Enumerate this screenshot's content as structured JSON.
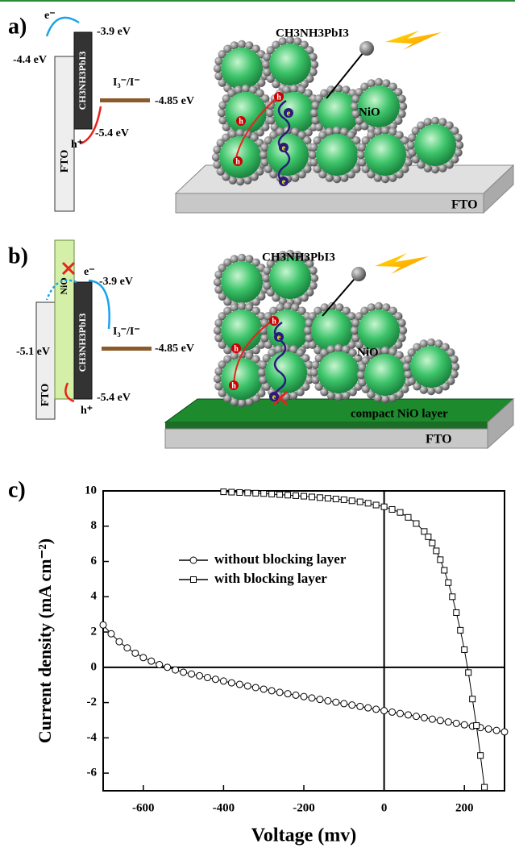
{
  "panel_a": {
    "label": "a)",
    "electron_sup": "e⁻",
    "cb": "-3.9 eV",
    "fto_level": "-4.4 eV",
    "perovskite": "CH3NH3PbI3",
    "redox": "I₃⁻/I⁻",
    "redox_level": "-4.85 eV",
    "hole_sup": "h⁺",
    "vb": "-5.4 eV",
    "fto": "FTO",
    "absorber": "CH3NH3PbI3",
    "nio": "NiO",
    "substrate": "FTO",
    "hole": "h",
    "electron": "e"
  },
  "panel_b": {
    "label": "b)",
    "electron_sup": "e⁻",
    "cb": "-3.9 eV",
    "nio_level": "-5.1 eV",
    "nio_band": "NiO",
    "perovskite": "CH3NH3PbI3",
    "redox": "I₃⁻/I⁻",
    "redox_level": "-4.85 eV",
    "hole_sup": "h⁺",
    "vb": "-5.4 eV",
    "fto": "FTO",
    "absorber": "CH3NH3PbI3",
    "nio": "NiO",
    "compact_layer": "compact NiO layer",
    "substrate": "FTO",
    "hole": "h",
    "electron": "e"
  },
  "chart_data": {
    "type": "scatter",
    "panel_label": "c)",
    "x_label": "Voltage (mv)",
    "y_label": "Current density (mA cm⁻²)",
    "xlim": [
      -700,
      300
    ],
    "xticks": [
      -600,
      -400,
      -200,
      0,
      200
    ],
    "ylim": [
      -7,
      10
    ],
    "yticks": [
      -6,
      -4,
      -2,
      0,
      2,
      4,
      6,
      8,
      10
    ],
    "zero_lines": true,
    "legend": "center left",
    "series": [
      {
        "name": "without blocking layer",
        "marker": "circle",
        "color": "#000000",
        "x": [
          -700,
          -680,
          -660,
          -640,
          -620,
          -600,
          -580,
          -560,
          -540,
          -520,
          -500,
          -480,
          -460,
          -440,
          -420,
          -400,
          -380,
          -360,
          -340,
          -320,
          -300,
          -280,
          -260,
          -240,
          -220,
          -200,
          -180,
          -160,
          -140,
          -120,
          -100,
          -80,
          -60,
          -40,
          -20,
          0,
          20,
          40,
          60,
          80,
          100,
          120,
          140,
          160,
          180,
          200,
          220,
          240,
          260,
          280,
          300
        ],
        "values": [
          2.4,
          1.9,
          1.45,
          1.1,
          0.8,
          0.55,
          0.35,
          0.15,
          0.0,
          -0.15,
          -0.28,
          -0.38,
          -0.48,
          -0.58,
          -0.68,
          -0.78,
          -0.88,
          -0.97,
          -1.06,
          -1.15,
          -1.24,
          -1.33,
          -1.42,
          -1.5,
          -1.58,
          -1.66,
          -1.74,
          -1.82,
          -1.9,
          -1.98,
          -2.06,
          -2.14,
          -2.22,
          -2.3,
          -2.38,
          -2.46,
          -2.54,
          -2.62,
          -2.7,
          -2.78,
          -2.86,
          -2.94,
          -3.02,
          -3.1,
          -3.18,
          -3.26,
          -3.34,
          -3.42,
          -3.5,
          -3.58,
          -3.66
        ]
      },
      {
        "name": "with blocking layer",
        "marker": "square",
        "color": "#000000",
        "x": [
          -400,
          -380,
          -360,
          -340,
          -320,
          -300,
          -280,
          -260,
          -240,
          -220,
          -200,
          -180,
          -160,
          -140,
          -120,
          -100,
          -80,
          -60,
          -40,
          -20,
          0,
          20,
          40,
          60,
          80,
          100,
          110,
          120,
          130,
          140,
          150,
          160,
          170,
          180,
          190,
          200,
          210,
          220,
          230,
          240,
          250
        ],
        "values": [
          9.95,
          9.93,
          9.91,
          9.89,
          9.87,
          9.85,
          9.82,
          9.79,
          9.76,
          9.73,
          9.7,
          9.66,
          9.62,
          9.58,
          9.54,
          9.5,
          9.44,
          9.38,
          9.3,
          9.2,
          9.1,
          8.95,
          8.78,
          8.5,
          8.15,
          7.7,
          7.4,
          7.05,
          6.6,
          6.1,
          5.5,
          4.8,
          4.0,
          3.1,
          2.1,
          1.0,
          -0.3,
          -1.8,
          -3.3,
          -5.0,
          -6.8
        ]
      }
    ]
  }
}
